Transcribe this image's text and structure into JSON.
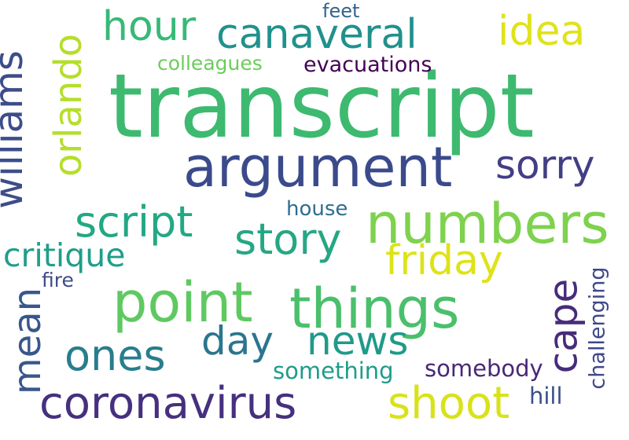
{
  "words": {
    "transcript": "transcript",
    "argument": "argument",
    "numbers": "numbers",
    "point": "point",
    "things": "things",
    "coronavirus": "coronavirus",
    "canaveral": "canaveral",
    "williams": "williams",
    "orlando": "orlando",
    "hour": "hour",
    "idea": "idea",
    "feet": "feet",
    "colleagues": "colleagues",
    "evacuations": "evacuations",
    "sorry": "sorry",
    "script": "script",
    "story": "story",
    "house": "house",
    "critique": "critique",
    "friday": "friday",
    "fire": "fire",
    "mean": "mean",
    "cape": "cape",
    "challenging": "challenging",
    "day": "day",
    "news": "news",
    "ones": "ones",
    "something": "something",
    "somebody": "somebody",
    "hill": "hill",
    "shoot": "shoot"
  },
  "colors": {
    "transcript": "#3dba70",
    "argument": "#3b4a8b",
    "numbers": "#7ed24e",
    "point": "#5fc961",
    "things": "#4bbf6b",
    "coronavirus": "#46307e",
    "canaveral": "#21918c",
    "williams": "#3d4d8a",
    "orlando": "#b5de2b",
    "hour": "#38b977",
    "idea": "#e0e21c",
    "feet": "#33638d",
    "colleagues": "#6ccd5a",
    "evacuations": "#440154",
    "sorry": "#433e85",
    "script": "#22a884",
    "story": "#26a783",
    "house": "#2e6e8e",
    "critique": "#1f9e89",
    "friday": "#dde318",
    "fire": "#3e4c8a",
    "mean": "#39568c",
    "cape": "#472c7a",
    "challenging": "#3f4889",
    "day": "#2b758e",
    "news": "#1f9a8a",
    "ones": "#287d8e",
    "something": "#1e9c89",
    "somebody": "#482878",
    "hill": "#3c508b",
    "shoot": "#d8e219"
  }
}
